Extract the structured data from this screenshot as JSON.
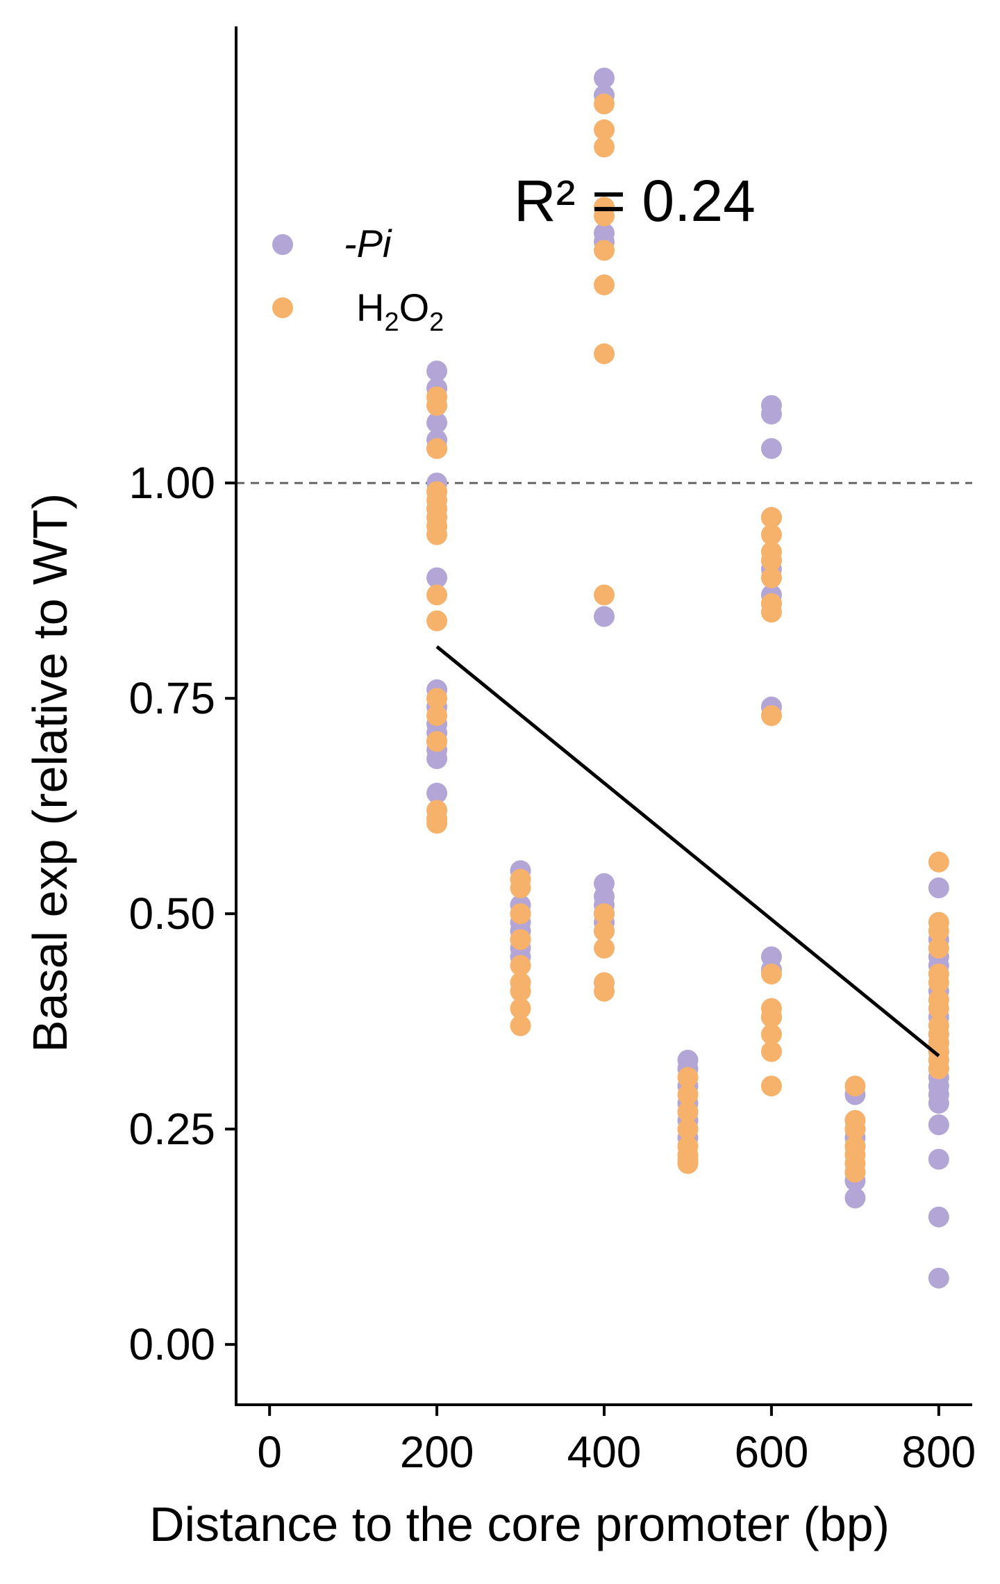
{
  "chart_data": {
    "type": "scatter",
    "xlabel": "Distance to the core promoter (bp)",
    "ylabel": "Basal exp (relative to WT)",
    "xlim": [
      -40,
      840
    ],
    "ylim": [
      -0.07,
      1.53
    ],
    "x_ticks": [
      0,
      200,
      400,
      600,
      800
    ],
    "y_ticks": [
      0.0,
      0.25,
      0.5,
      0.75,
      1.0
    ],
    "x_tick_labels": [
      "0",
      "200",
      "400",
      "600",
      "800"
    ],
    "y_tick_labels": [
      "0.00",
      "0.25",
      "0.50",
      "0.75",
      "1.00"
    ],
    "reference_line": {
      "y": 1.0,
      "style": "dashed",
      "color": "#666666"
    },
    "fit_line": {
      "x": [
        200,
        800
      ],
      "y": [
        0.81,
        0.335
      ],
      "color": "#000000"
    },
    "annotation": "R² =  0.24",
    "legend_position": "upper-left",
    "colors": {
      "pi": "#b3a6d6",
      "h2o2": "#f6b26b"
    },
    "series": [
      {
        "name": "-Pi",
        "label_text": "-Pi",
        "color": "#b3a6d6",
        "points": [
          [
            200,
            1.13
          ],
          [
            200,
            1.11
          ],
          [
            200,
            1.09
          ],
          [
            200,
            1.07
          ],
          [
            200,
            1.05
          ],
          [
            200,
            1.04
          ],
          [
            200,
            1.0
          ],
          [
            200,
            0.97
          ],
          [
            200,
            0.89
          ],
          [
            200,
            0.76
          ],
          [
            200,
            0.74
          ],
          [
            200,
            0.72
          ],
          [
            200,
            0.71
          ],
          [
            200,
            0.7
          ],
          [
            200,
            0.69
          ],
          [
            200,
            0.68
          ],
          [
            200,
            0.64
          ],
          [
            300,
            0.55
          ],
          [
            300,
            0.51
          ],
          [
            300,
            0.5
          ],
          [
            300,
            0.49
          ],
          [
            300,
            0.48
          ],
          [
            300,
            0.47
          ],
          [
            300,
            0.46
          ],
          [
            300,
            0.45
          ],
          [
            400,
            1.47
          ],
          [
            400,
            1.45
          ],
          [
            400,
            1.32
          ],
          [
            400,
            1.29
          ],
          [
            400,
            1.28
          ],
          [
            400,
            0.845
          ],
          [
            400,
            0.535
          ],
          [
            400,
            0.52
          ],
          [
            400,
            0.51
          ],
          [
            400,
            0.5
          ],
          [
            400,
            0.49
          ],
          [
            400,
            0.48
          ],
          [
            500,
            0.33
          ],
          [
            500,
            0.32
          ],
          [
            500,
            0.3
          ],
          [
            500,
            0.28
          ],
          [
            500,
            0.27
          ],
          [
            500,
            0.26
          ],
          [
            500,
            0.25
          ],
          [
            500,
            0.24
          ],
          [
            600,
            1.09
          ],
          [
            600,
            1.08
          ],
          [
            600,
            1.04
          ],
          [
            600,
            0.96
          ],
          [
            600,
            0.91
          ],
          [
            600,
            0.9
          ],
          [
            600,
            0.87
          ],
          [
            600,
            0.86
          ],
          [
            600,
            0.74
          ],
          [
            600,
            0.45
          ],
          [
            600,
            0.435
          ],
          [
            600,
            0.38
          ],
          [
            700,
            0.29
          ],
          [
            700,
            0.26
          ],
          [
            700,
            0.25
          ],
          [
            700,
            0.24
          ],
          [
            700,
            0.23
          ],
          [
            700,
            0.2
          ],
          [
            700,
            0.19
          ],
          [
            700,
            0.17
          ],
          [
            800,
            0.53
          ],
          [
            800,
            0.47
          ],
          [
            800,
            0.45
          ],
          [
            800,
            0.44
          ],
          [
            800,
            0.41
          ],
          [
            800,
            0.38
          ],
          [
            800,
            0.36
          ],
          [
            800,
            0.35
          ],
          [
            800,
            0.34
          ],
          [
            800,
            0.33
          ],
          [
            800,
            0.32
          ],
          [
            800,
            0.31
          ],
          [
            800,
            0.3
          ],
          [
            800,
            0.29
          ],
          [
            800,
            0.28
          ],
          [
            800,
            0.255
          ],
          [
            800,
            0.215
          ],
          [
            800,
            0.148
          ],
          [
            800,
            0.077
          ]
        ]
      },
      {
        "name": "H₂O₂",
        "label_text": "H",
        "label_sub1": "2",
        "label_text2": "O",
        "label_sub2": "2",
        "color": "#f6b26b",
        "points": [
          [
            200,
            1.1
          ],
          [
            200,
            1.09
          ],
          [
            200,
            1.04
          ],
          [
            200,
            0.99
          ],
          [
            200,
            0.98
          ],
          [
            200,
            0.97
          ],
          [
            200,
            0.96
          ],
          [
            200,
            0.95
          ],
          [
            200,
            0.94
          ],
          [
            200,
            0.87
          ],
          [
            200,
            0.84
          ],
          [
            200,
            0.75
          ],
          [
            200,
            0.73
          ],
          [
            200,
            0.7
          ],
          [
            200,
            0.62
          ],
          [
            200,
            0.61
          ],
          [
            200,
            0.605
          ],
          [
            300,
            0.54
          ],
          [
            300,
            0.53
          ],
          [
            300,
            0.5
          ],
          [
            300,
            0.47
          ],
          [
            300,
            0.44
          ],
          [
            300,
            0.42
          ],
          [
            300,
            0.41
          ],
          [
            300,
            0.39
          ],
          [
            300,
            0.37
          ],
          [
            400,
            1.44
          ],
          [
            400,
            1.41
          ],
          [
            400,
            1.39
          ],
          [
            400,
            1.32
          ],
          [
            400,
            1.31
          ],
          [
            400,
            1.27
          ],
          [
            400,
            1.23
          ],
          [
            400,
            1.15
          ],
          [
            400,
            0.87
          ],
          [
            400,
            0.5
          ],
          [
            400,
            0.48
          ],
          [
            400,
            0.46
          ],
          [
            400,
            0.42
          ],
          [
            400,
            0.41
          ],
          [
            500,
            0.31
          ],
          [
            500,
            0.29
          ],
          [
            500,
            0.27
          ],
          [
            500,
            0.25
          ],
          [
            500,
            0.23
          ],
          [
            500,
            0.22
          ],
          [
            500,
            0.215
          ],
          [
            500,
            0.21
          ],
          [
            600,
            0.96
          ],
          [
            600,
            0.94
          ],
          [
            600,
            0.92
          ],
          [
            600,
            0.91
          ],
          [
            600,
            0.89
          ],
          [
            600,
            0.86
          ],
          [
            600,
            0.85
          ],
          [
            600,
            0.73
          ],
          [
            600,
            0.43
          ],
          [
            600,
            0.39
          ],
          [
            600,
            0.38
          ],
          [
            600,
            0.36
          ],
          [
            600,
            0.34
          ],
          [
            600,
            0.3
          ],
          [
            700,
            0.3
          ],
          [
            700,
            0.26
          ],
          [
            700,
            0.25
          ],
          [
            700,
            0.23
          ],
          [
            700,
            0.22
          ],
          [
            700,
            0.21
          ],
          [
            700,
            0.2
          ],
          [
            800,
            0.56
          ],
          [
            800,
            0.49
          ],
          [
            800,
            0.48
          ],
          [
            800,
            0.46
          ],
          [
            800,
            0.43
          ],
          [
            800,
            0.42
          ],
          [
            800,
            0.4
          ],
          [
            800,
            0.39
          ],
          [
            800,
            0.37
          ],
          [
            800,
            0.36
          ],
          [
            800,
            0.35
          ],
          [
            800,
            0.34
          ],
          [
            800,
            0.33
          ],
          [
            800,
            0.32
          ]
        ]
      }
    ]
  }
}
